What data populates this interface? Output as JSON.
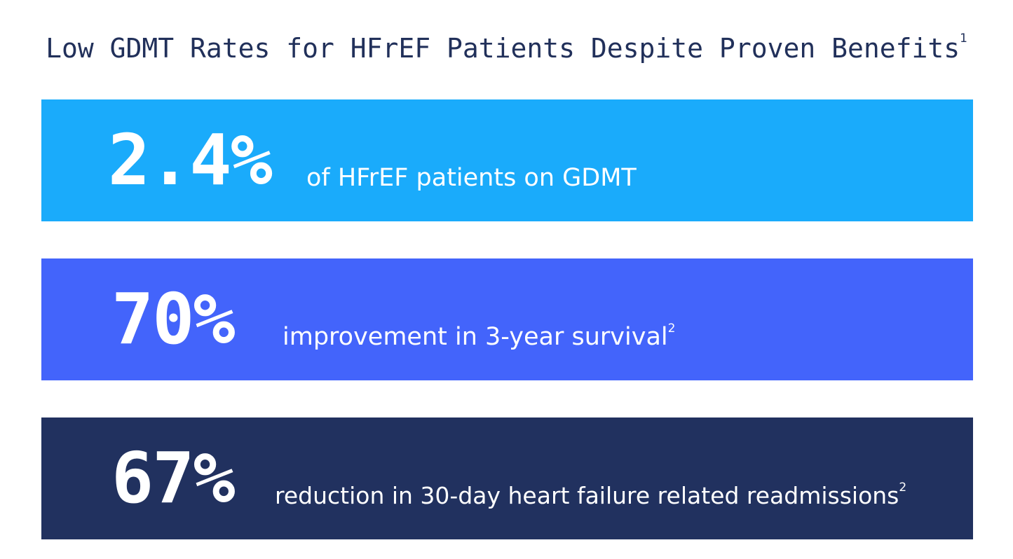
{
  "title": {
    "text": "Low GDMT Rates for HFrEF Patients Despite Proven Benefits",
    "footnote": "1"
  },
  "stats": [
    {
      "value": "2.4%",
      "label": "of HFrEF patients on GDMT",
      "footnote": "",
      "color": "#1aabfb"
    },
    {
      "value": "70%",
      "label": "improvement in 3-year survival",
      "footnote": "2",
      "color": "#4364fb"
    },
    {
      "value": "67%",
      "label": "reduction in 30-day heart failure related readmissions",
      "footnote": "2",
      "color": "#21315f"
    }
  ],
  "colors": {
    "title_text": "#21305a",
    "stat_text": "#ffffff",
    "background": "#ffffff"
  }
}
